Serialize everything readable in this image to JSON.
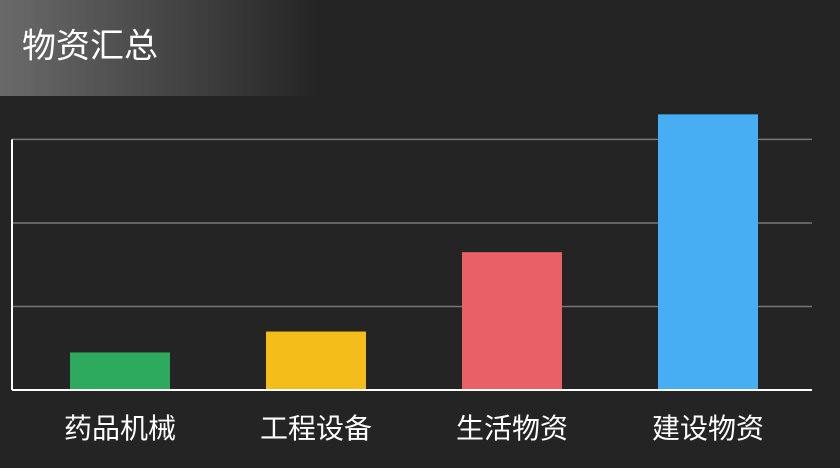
{
  "chart_data": {
    "type": "bar",
    "title": "物资汇总",
    "categories": [
      "药品机械",
      "工程设备",
      "生活物资",
      "建设物资"
    ],
    "values": [
      0.45,
      0.7,
      1.65,
      3.3
    ],
    "colors": [
      "#2eaa5e",
      "#f4bd19",
      "#e96166",
      "#48aef4"
    ],
    "ylim": [
      0,
      3.4
    ],
    "yticks": [
      0,
      1,
      2,
      3
    ],
    "grid": true
  }
}
